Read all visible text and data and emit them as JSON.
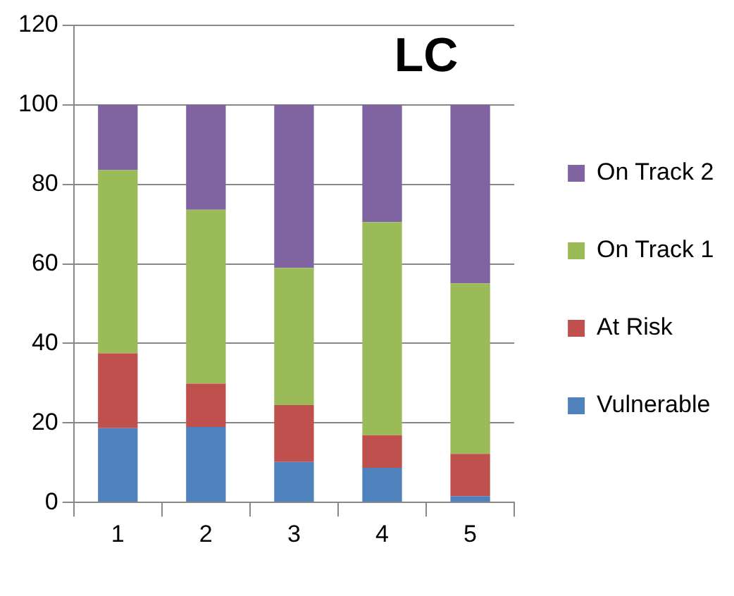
{
  "chart_data": {
    "type": "bar",
    "title": "LC",
    "stacked": true,
    "categories": [
      "1",
      "2",
      "3",
      "4",
      "5"
    ],
    "series": [
      {
        "name": "Vulnerable",
        "color": "#4f81bd",
        "values": [
          18.7,
          19,
          10.2,
          8.7,
          1.6
        ]
      },
      {
        "name": "At Risk",
        "color": "#c0504d",
        "values": [
          18.8,
          10.9,
          14.3,
          8.2,
          10.6
        ]
      },
      {
        "name": "On Track 1",
        "color": "#9bbb59",
        "values": [
          46.1,
          43.7,
          34.5,
          53.6,
          42.9
        ]
      },
      {
        "name": "On Track 2",
        "color": "#8064a2",
        "values": [
          16.4,
          26.4,
          41,
          29.5,
          44.9
        ]
      }
    ],
    "ylim": [
      0,
      120
    ],
    "yticks": [
      0,
      20,
      40,
      60,
      80,
      100,
      120
    ],
    "grid": "y",
    "legend": "right"
  }
}
